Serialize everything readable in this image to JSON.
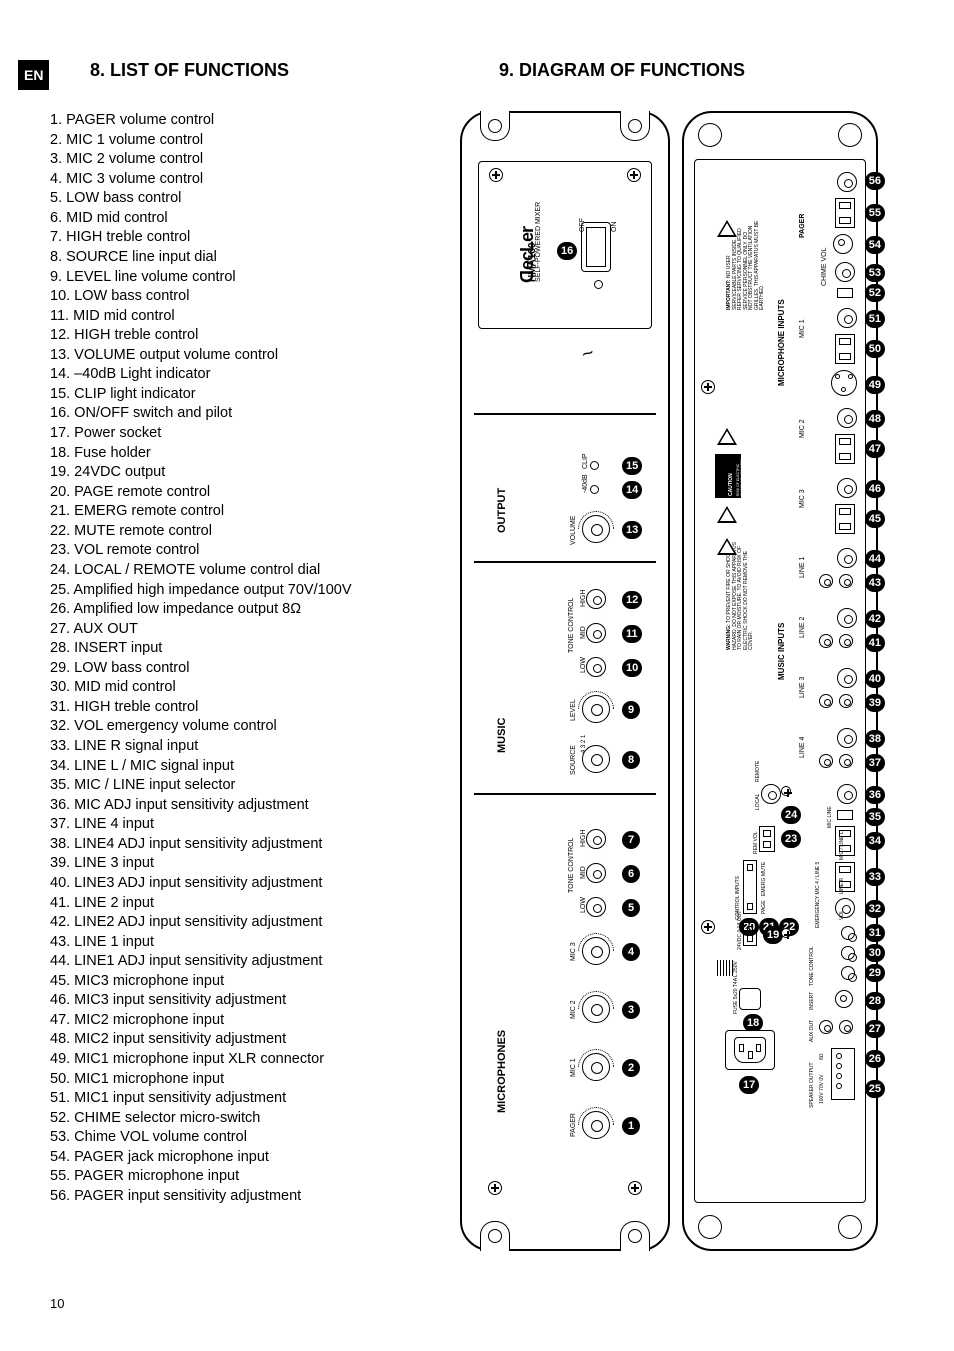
{
  "language_tab": "EN",
  "page_number": "10",
  "heading_left": "8. LIST OF FUNCTIONS",
  "heading_right": "9. DIAGRAM OF FUNCTIONS",
  "items": [
    "PAGER volume control",
    "MIC 1 volume control",
    "MIC 2 volume control",
    "MIC 3 volume control",
    "LOW bass control",
    "MID mid control",
    "HIGH treble control",
    "SOURCE line input dial",
    "LEVEL line volume control",
    "LOW bass control",
    "MID mid control",
    "HIGH treble control",
    "VOLUME output volume control",
    "–40dB Light indicator",
    "CLIP light indicator",
    "ON/OFF switch and pilot",
    "Power socket",
    "Fuse holder",
    "24VDC output",
    "PAGE remote control",
    "EMERG remote control",
    "MUTE remote control",
    "VOL remote control",
    "LOCAL / REMOTE volume control dial",
    "Amplified high impedance output 70V/100V",
    "Amplified low impedance output 8Ω",
    "AUX OUT",
    "INSERT input",
    "LOW bass control",
    "MID mid control",
    "HIGH treble control",
    "VOL emergency volume control",
    "LINE R signal input",
    "LINE L / MIC signal input",
    "MIC / LINE input selector",
    "MIC ADJ input sensitivity adjustment",
    "LINE 4 input",
    "LINE4 ADJ input sensitivity adjustment",
    "LINE 3 input",
    "LINE3 ADJ input sensitivity adjustment",
    "LINE 2 input",
    "LINE2 ADJ input sensitivity adjustment",
    "LINE 1 input",
    "LINE1 ADJ input sensitivity adjustment",
    "MIC3 microphone input",
    "MIC3 input sensitivity adjustment",
    "MIC2 microphone input",
    "MIC2 input sensitivity adjustment",
    "MIC1 microphone input XLR connector",
    "MIC1 microphone input",
    "MIC1 input sensitivity adjustment",
    "CHIME selector micro-switch",
    "Chime VOL volume control",
    "PAGER jack microphone input",
    "PAGER microphone input",
    "PAGER input sensitivity adjustment"
  ],
  "front": {
    "brand": "ecLer",
    "model": "HMA180",
    "subtitle": "SELF-POWERED MIXER",
    "power_off": "OFF",
    "power_on": "ON",
    "sections": {
      "output": "OUTPUT",
      "output_volume": "VOLUME",
      "output_m40": "-40dB",
      "output_clip": "CLIP",
      "music": "MUSIC",
      "tone": "TONE CONTROL",
      "low": "LOW",
      "mid": "MID",
      "high": "HIGH",
      "level": "LEVEL",
      "source": "SOURCE",
      "microphones": "MICROPHONES",
      "mic3": "MIC 3",
      "mic2": "MIC 2",
      "mic1": "MIC 1",
      "pager": "PAGER"
    }
  },
  "rear": {
    "section_mic_inputs": "MICROPHONE INPUTS",
    "section_music_inputs": "MUSIC INPUTS",
    "pager": "PAGER",
    "mic1": "MIC 1",
    "mic2": "MIC 2",
    "mic3": "MIC 3",
    "line1": "LINE 1",
    "line2": "LINE 2",
    "line3": "LINE 3",
    "line4": "LINE 4",
    "adj": "ADJ",
    "chime_vol": "CHIME   VOL",
    "local": "LOCAL",
    "remote": "REMOTE",
    "rem_vol": "REM VOL",
    "control_inputs": "CONTROL INPUTS",
    "page": "PAGE",
    "emerg": "EMERG",
    "mute": "MUTE",
    "vol": "VOL",
    "dc24": "24VDC 0.1A OUT",
    "fuse": "FUSE 5x20 T4A L 250V",
    "speaker": "SPEAKER OUTPUT",
    "v100": "100V 70V 0V",
    "ohm8": "8Ω",
    "aux_out": "AUX OUT",
    "insert": "INSERT",
    "tone": "TONE CONTROL",
    "low": "LOW",
    "mid": "MID",
    "high": "HIGH",
    "emergency": "EMERGENCY MIC 4 / LINE 5",
    "mic_line_sel": "MIC LINE",
    "mic_l": "MIC / LINE L",
    "line_r": "LINE R",
    "warning_header": "WARNING:",
    "warning_body": "TO PREVENT FIRE OR SHOCK HAZARD, DO NOT EXPOSE THIS APPARATUS TO RAIN OR MOISTURE. TO AVOID RISK OF ELECTRIC SHOCK DO NOT REMOVE THE COVER.",
    "important_header": "IMPORTANT:",
    "important_body": "NO USER SERVICEABLE PARTS INSIDE. REFER SERVICING TO QUALIFIED SERVICE PERSONNEL ONLY. DO NOT OBSTRUCT THE VENTILATION GRILLES. THIS APPARATUS MUST BE EARTHED.",
    "caution": "CAUTION",
    "donotopen": "RISK OF ELECTRIC SHOCK DO NOT OPEN"
  }
}
